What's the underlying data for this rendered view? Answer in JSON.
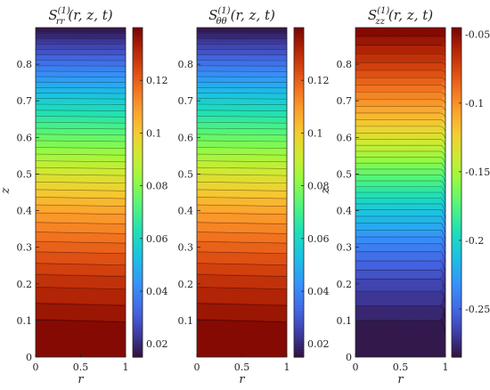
{
  "chart_data": [
    {
      "type": "heatmap",
      "title": "S_rr^(1)(r, z, t)",
      "title_parts": {
        "base": "S",
        "sub": "rr",
        "sup": "(1)",
        "args": "(r, z, t)"
      },
      "xlabel": "r",
      "ylabel": "z",
      "xlim": [
        0,
        1
      ],
      "ylim": [
        0,
        0.9
      ],
      "x_ticks": [
        "0",
        "0.5",
        "1"
      ],
      "y_ticks": [
        "0",
        "0.1",
        "0.2",
        "0.3",
        "0.4",
        "0.5",
        "0.6",
        "0.7",
        "0.8"
      ],
      "colorbar": {
        "range": [
          0.015,
          0.14
        ],
        "ticks": [
          0.02,
          0.04,
          0.06,
          0.08,
          0.1,
          0.12
        ],
        "tick_labels": [
          "0.02",
          "0.04",
          "0.06",
          "0.08",
          "0.1",
          "0.12"
        ]
      },
      "field": {
        "z": [
          0,
          0.1,
          0.2,
          0.3,
          0.4,
          0.5,
          0.6,
          0.7,
          0.8,
          0.9
        ],
        "value": [
          0.14,
          0.137,
          0.13,
          0.12,
          0.108,
          0.093,
          0.076,
          0.057,
          0.036,
          0.015
        ],
        "varies_with_r": false
      },
      "contour_levels": 40,
      "colormap": "turbo-like"
    },
    {
      "type": "heatmap",
      "title": "S_θθ^(1)(r, z, t)",
      "title_parts": {
        "base": "S",
        "sub": "θθ",
        "sup": "(1)",
        "args": "(r, z, t)"
      },
      "xlabel": "r",
      "ylabel": "",
      "xlim": [
        0,
        1
      ],
      "ylim": [
        0,
        0.9
      ],
      "x_ticks": [
        "0",
        "0.5",
        "1"
      ],
      "y_ticks": [
        "0.1",
        "0.2",
        "0.3",
        "0.4",
        "0.5",
        "0.6",
        "0.7",
        "0.8"
      ],
      "colorbar": {
        "range": [
          0.015,
          0.14
        ],
        "ticks": [
          0.02,
          0.04,
          0.06,
          0.08,
          0.1,
          0.12
        ],
        "tick_labels": [
          "0.02",
          "0.04",
          "0.06",
          "0.08",
          "0.1",
          "0.12"
        ]
      },
      "field": {
        "z": [
          0,
          0.1,
          0.2,
          0.3,
          0.4,
          0.5,
          0.6,
          0.7,
          0.8,
          0.9
        ],
        "value": [
          0.14,
          0.137,
          0.13,
          0.12,
          0.108,
          0.093,
          0.076,
          0.057,
          0.036,
          0.015
        ],
        "varies_with_r": false
      },
      "contour_levels": 40,
      "colormap": "turbo-like"
    },
    {
      "type": "heatmap",
      "title": "S_zz^(1)(r, z, t)",
      "title_parts": {
        "base": "S",
        "sub": "zz",
        "sup": "(1)",
        "args": "(r, z, t)"
      },
      "xlabel": "r",
      "ylabel": "z",
      "xlim": [
        0,
        1
      ],
      "ylim": [
        0,
        0.9
      ],
      "x_ticks": [
        "0",
        "0.5",
        "1"
      ],
      "y_ticks": [
        "0",
        "0.1",
        "0.2",
        "0.3",
        "0.4",
        "0.5",
        "0.6",
        "0.7",
        "0.8"
      ],
      "colorbar": {
        "range": [
          -0.285,
          -0.045
        ],
        "ticks": [
          -0.25,
          -0.2,
          -0.15,
          -0.1,
          -0.05
        ],
        "tick_labels": [
          "-0.25",
          "-0.2",
          "-0.15",
          "-0.1",
          "-0.05"
        ]
      },
      "field": {
        "z": [
          0,
          0.1,
          0.2,
          0.3,
          0.4,
          0.5,
          0.6,
          0.7,
          0.8,
          0.9
        ],
        "value": [
          -0.285,
          -0.279,
          -0.264,
          -0.24,
          -0.208,
          -0.17,
          -0.133,
          -0.1,
          -0.07,
          -0.045
        ],
        "varies_with_r": true
      },
      "contour_levels": 40,
      "colormap": "turbo-like"
    }
  ]
}
